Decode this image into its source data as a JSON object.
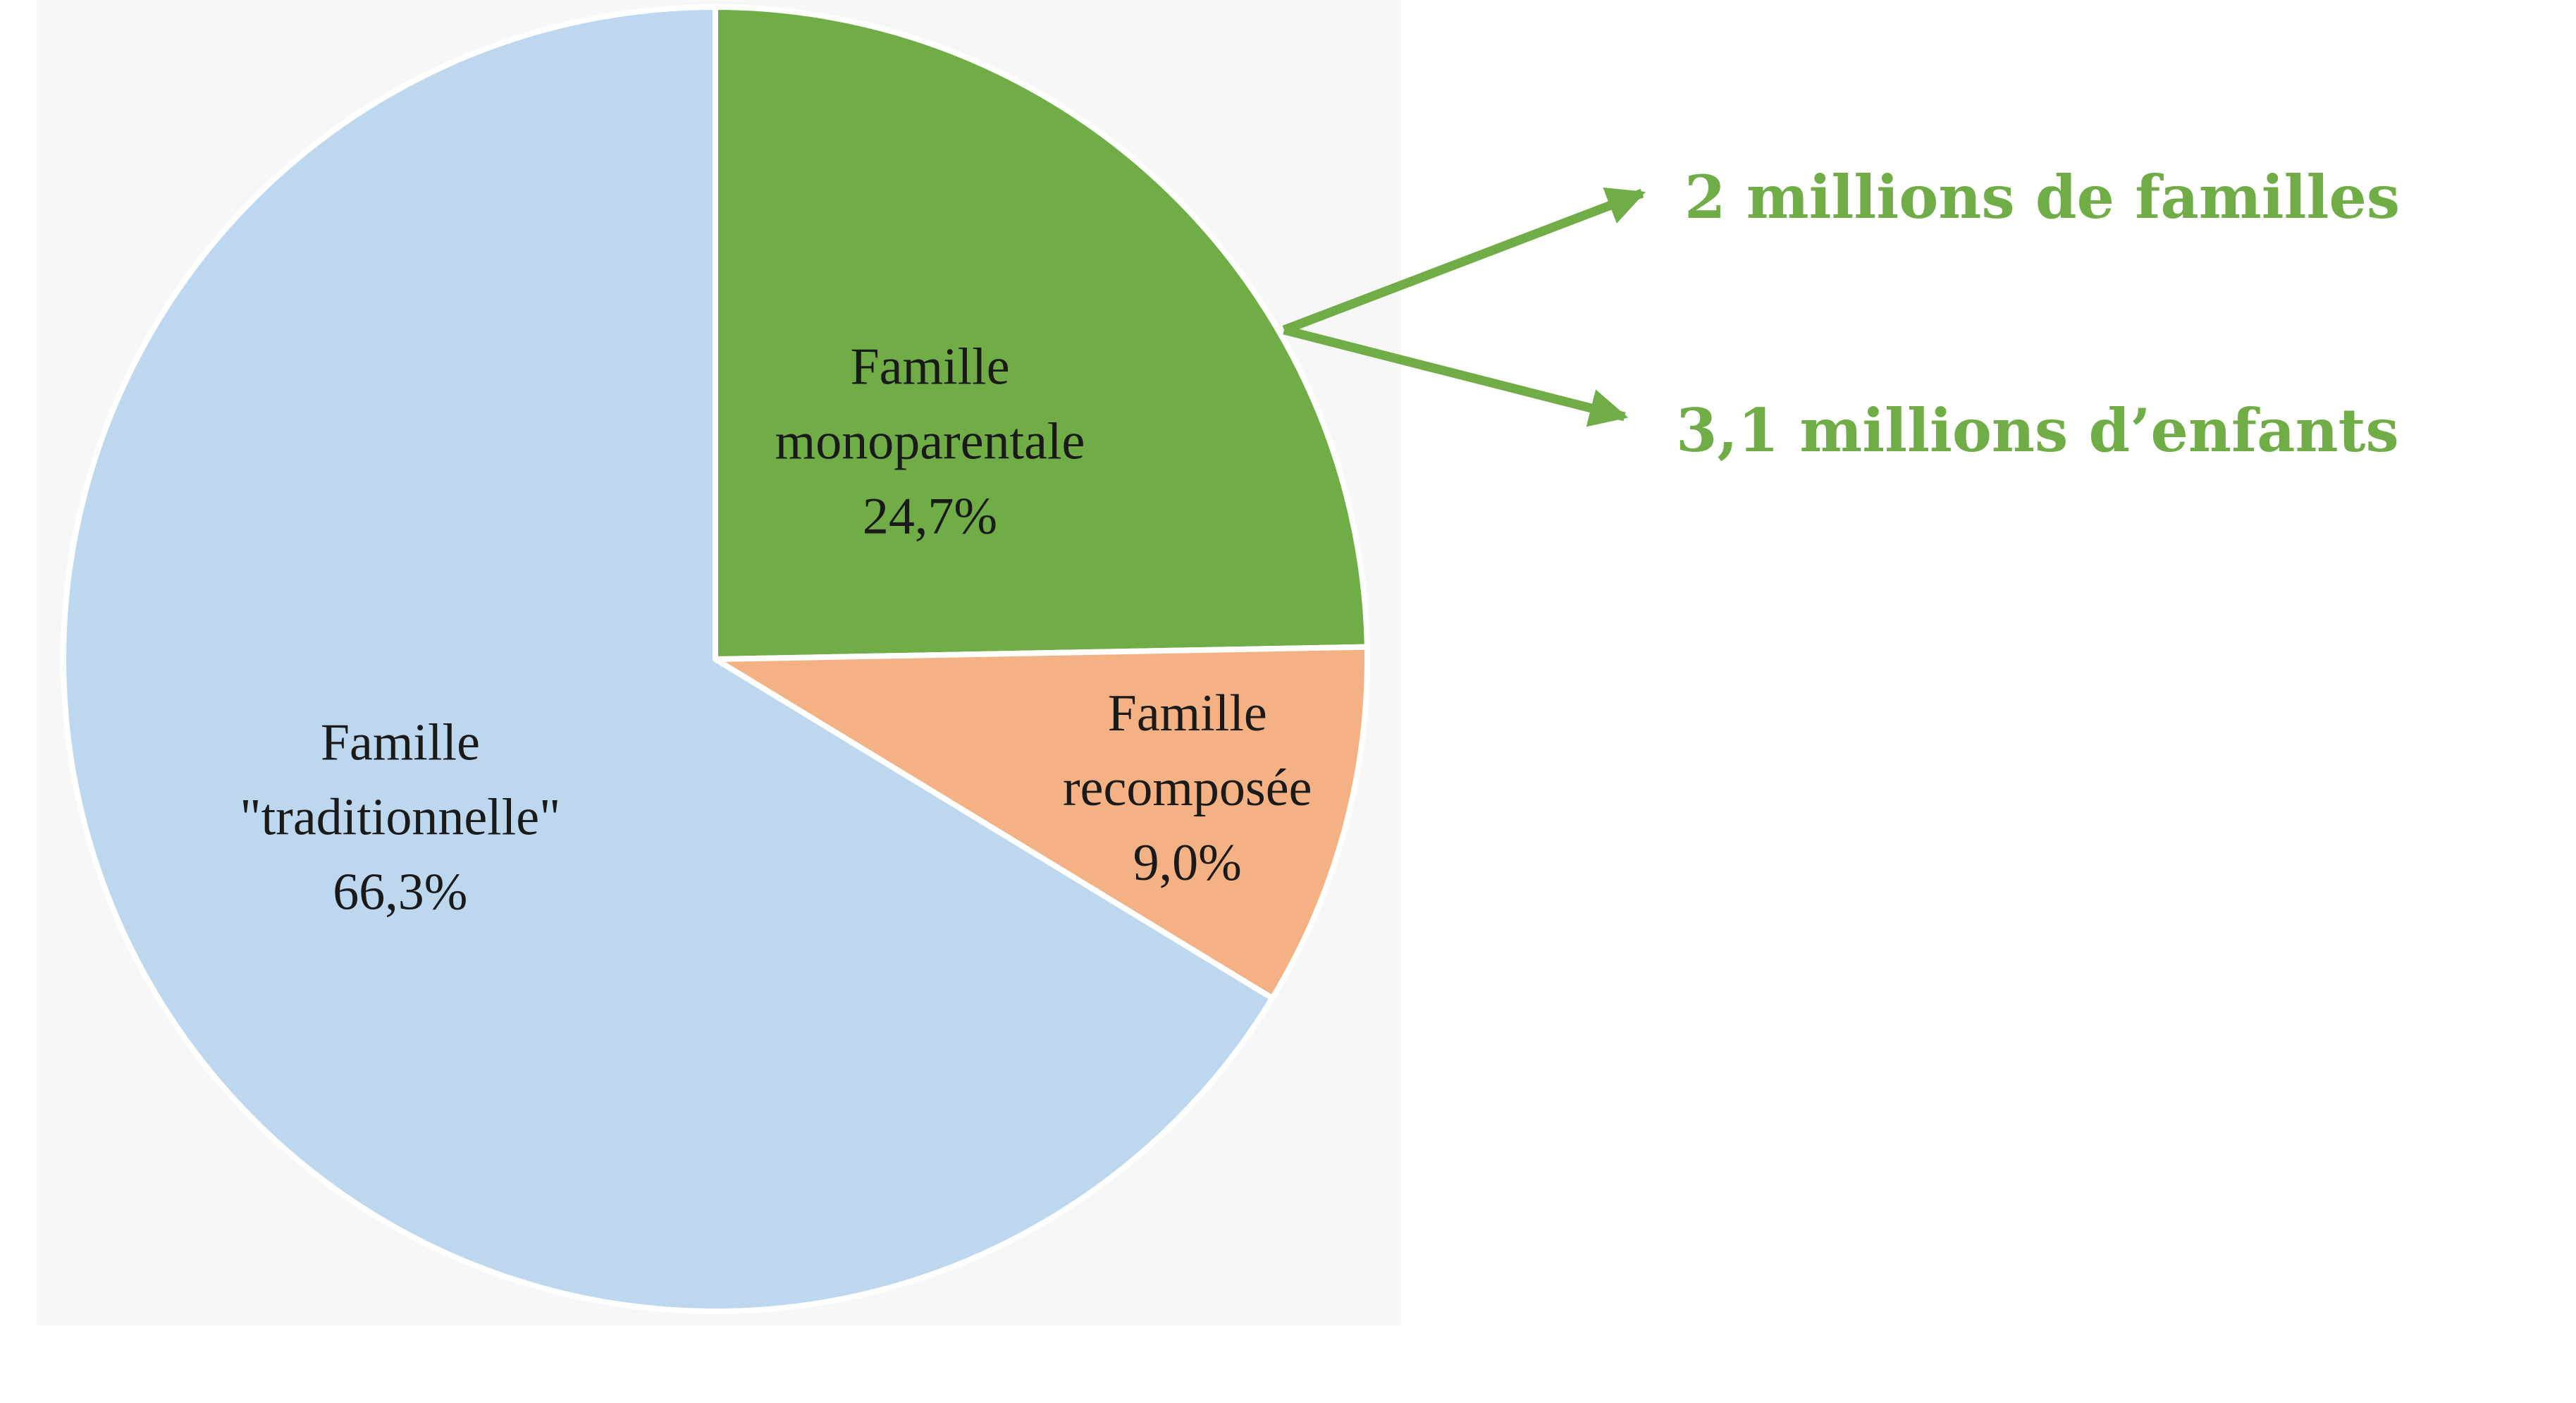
{
  "chart_data": {
    "type": "pie",
    "slices": [
      {
        "name": "Famille monoparentale",
        "value": 24.7,
        "color": "#70ad47",
        "label_lines": [
          "Famille",
          "monoparentale",
          "24,7%"
        ]
      },
      {
        "name": "Famille recomposée",
        "value": 9.0,
        "color": "#f4b183",
        "label_lines": [
          "Famille",
          "recomposée",
          "9,0%"
        ]
      },
      {
        "name": "Famille \"traditionnelle\"",
        "value": 66.3,
        "color": "#bdd7ee",
        "label_lines": [
          "Famille",
          "\"traditionnelle\"",
          "66,3%"
        ]
      }
    ],
    "start": "12 o'clock",
    "direction": "clockwise",
    "annotations": {
      "color": "#70ad47",
      "points_to": "Famille monoparentale",
      "items": [
        "2 millions de familles",
        "3,1 millions d’enfants"
      ]
    }
  }
}
